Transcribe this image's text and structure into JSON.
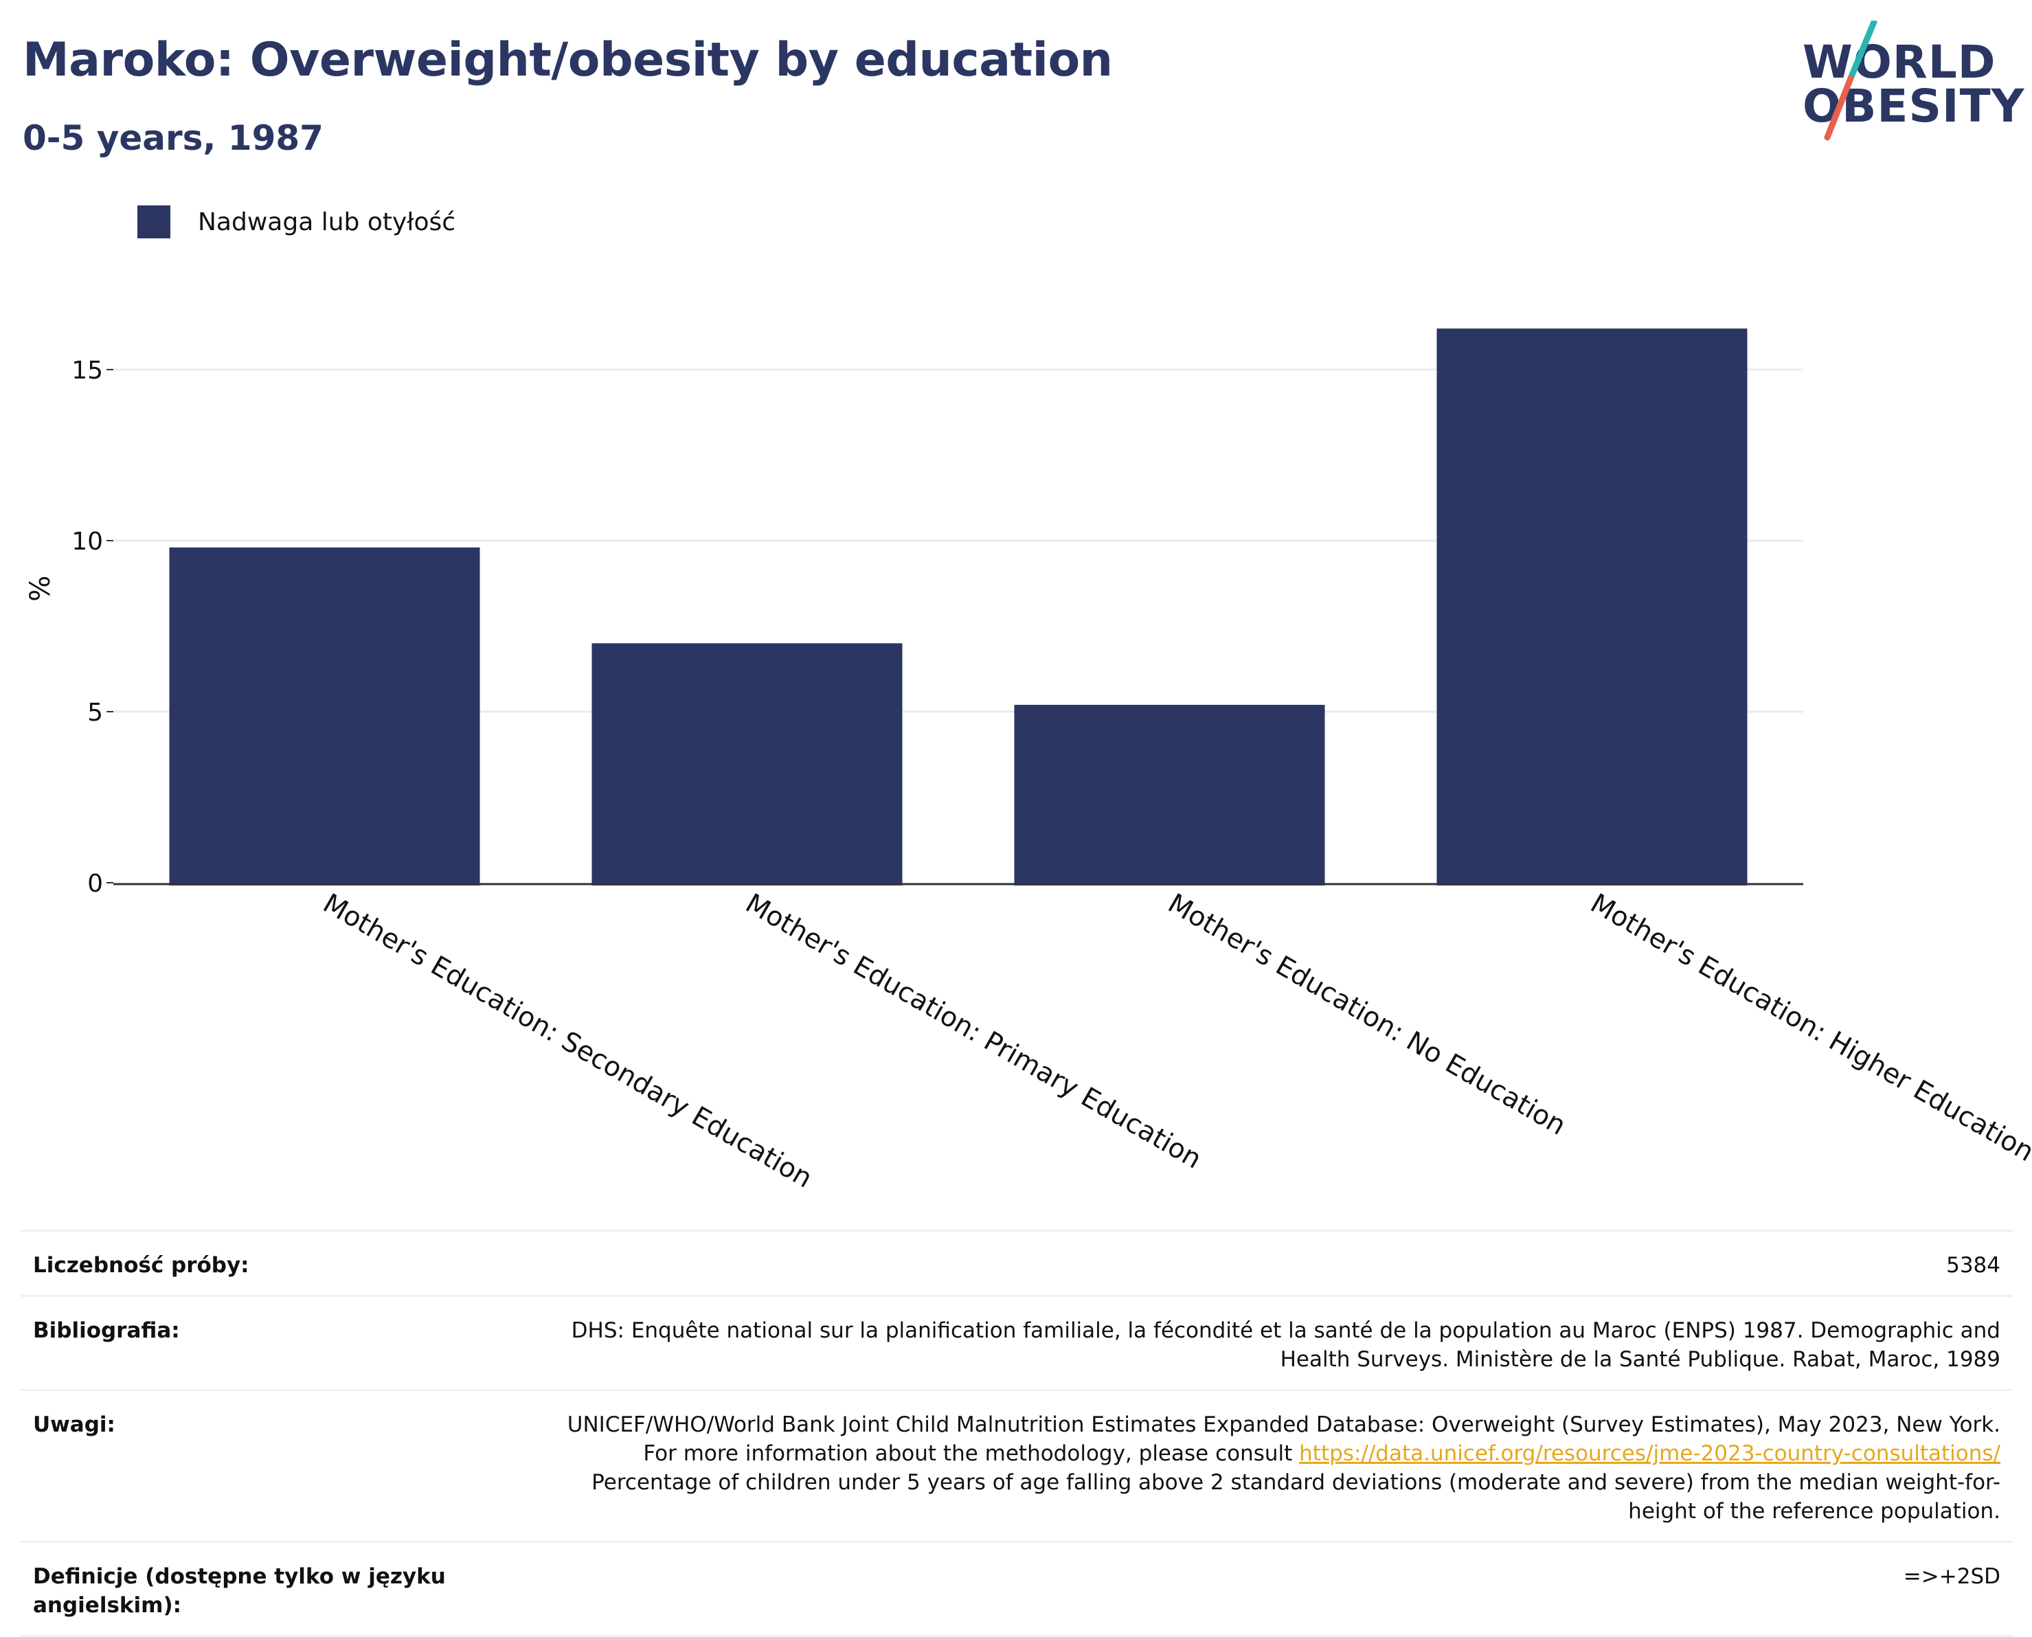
{
  "header": {
    "title": "Maroko: Overweight/obesity by education",
    "subtitle": "0-5 years, 1987"
  },
  "logo": {
    "line1": "WORLD",
    "line2": "OBESITY",
    "colors": {
      "text": "#2b3663",
      "slash_top": "#2ab5b0",
      "slash_bottom": "#e8614d"
    }
  },
  "legend": {
    "label": "Nadwaga lub otyłość"
  },
  "chart_data": {
    "type": "bar",
    "categories": [
      "Mother's Education: Secondary Education",
      "Mother's Education: Primary Education",
      "Mother's Education: No Education",
      "Mother's Education: Higher Education"
    ],
    "series": [
      {
        "name": "Nadwaga lub otyłość",
        "values": [
          9.8,
          7.0,
          5.2,
          16.2
        ],
        "color": "#2b3663"
      }
    ],
    "ylabel": "%",
    "ylim": [
      0,
      17.5
    ],
    "yticks": [
      0,
      5,
      10,
      15
    ],
    "grid": true,
    "legend_position": "top-left"
  },
  "meta": [
    {
      "key": "Liczebność próby:",
      "value": "5384"
    },
    {
      "key": "Bibliografia:",
      "value": "DHS: Enquête national sur la planification familiale, la fécondité et la santé de la population au Maroc (ENPS) 1987. Demographic and Health Surveys. Ministère de la Santé Publique. Rabat, Maroc, 1989"
    },
    {
      "key": "Uwagi:",
      "value_before": "UNICEF/WHO/World Bank Joint Child Malnutrition Estimates Expanded Database: Overweight (Survey Estimates), May 2023, New York. For more information about the methodology, please consult ",
      "link": "https://data.unicef.org/resources/jme-2023-country-consultations/",
      "value_after": " Percentage of children under 5 years of age falling above 2 standard deviations (moderate and severe) from the median weight-for-height of the reference population."
    },
    {
      "key": "Definicje (dostępne tylko w języku angielskim):",
      "value": "=>+2SD"
    }
  ]
}
